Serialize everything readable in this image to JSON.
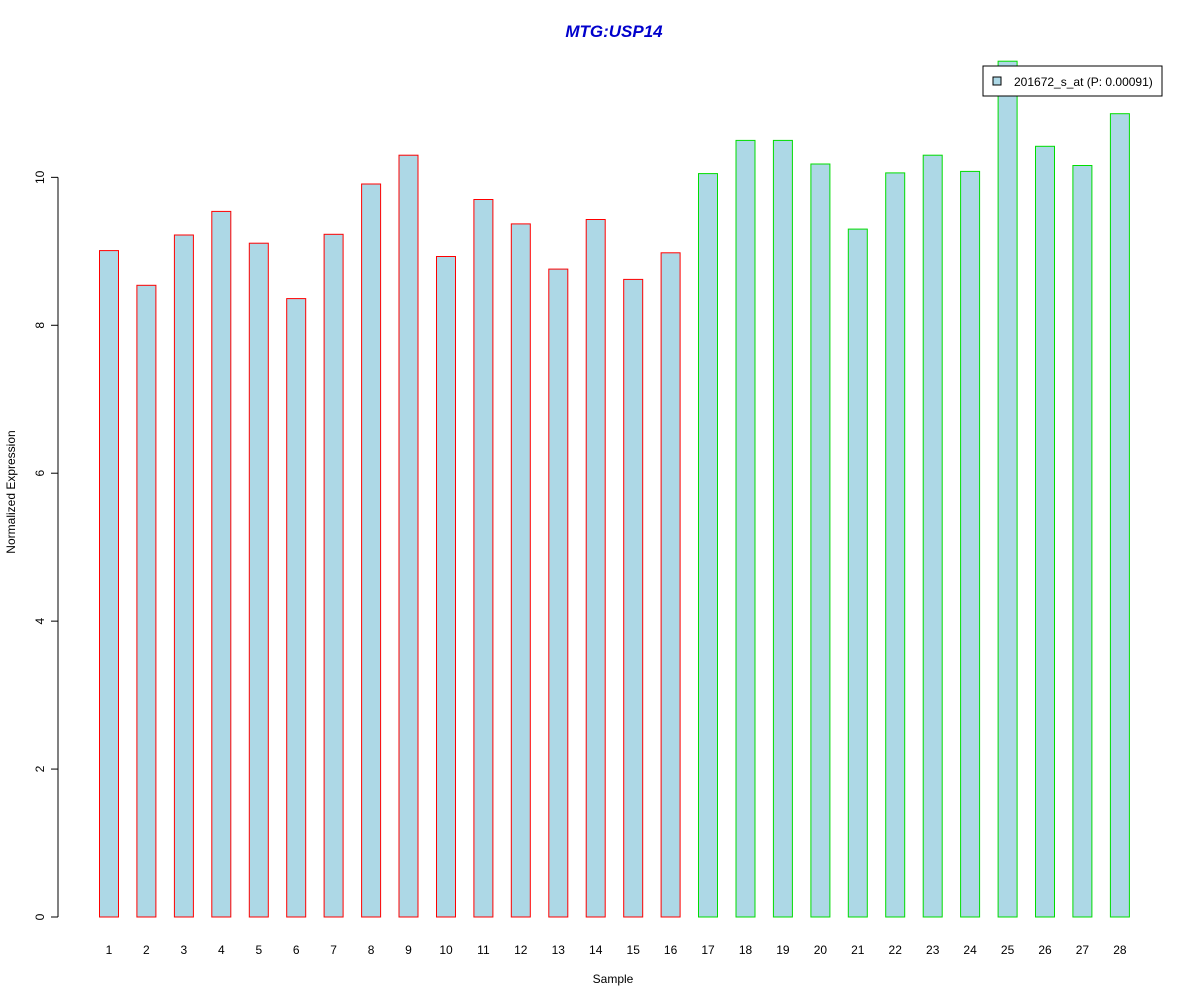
{
  "chart_data": {
    "type": "bar",
    "title": "MTG:USP14",
    "xlabel": "Sample",
    "ylabel": "Normalized Expression",
    "ylim": [
      0,
      11.6
    ],
    "yticks": [
      0,
      2,
      4,
      6,
      8,
      10
    ],
    "grid": false,
    "legend_position": "top-right",
    "categories": [
      "1",
      "2",
      "3",
      "4",
      "5",
      "6",
      "7",
      "8",
      "9",
      "10",
      "11",
      "12",
      "13",
      "14",
      "15",
      "16",
      "17",
      "18",
      "19",
      "20",
      "21",
      "22",
      "23",
      "24",
      "25",
      "26",
      "27",
      "28"
    ],
    "series": [
      {
        "name": "201672_s_at (P: 0.00091)",
        "values": [
          9.01,
          8.54,
          9.22,
          9.54,
          9.11,
          8.36,
          9.23,
          9.91,
          10.3,
          8.93,
          9.7,
          9.37,
          8.76,
          9.43,
          8.62,
          8.98,
          10.05,
          10.5,
          10.5,
          10.18,
          9.3,
          10.06,
          10.3,
          10.08,
          11.57,
          10.42,
          10.16,
          10.86
        ]
      }
    ],
    "groups": [
      {
        "samples": 16,
        "edge_color": "#ff0000"
      },
      {
        "samples": 12,
        "edge_color": "#00dd00"
      }
    ],
    "colors": {
      "fill": "#add8e6",
      "title": "#0000cc",
      "axis": "#000000"
    }
  }
}
